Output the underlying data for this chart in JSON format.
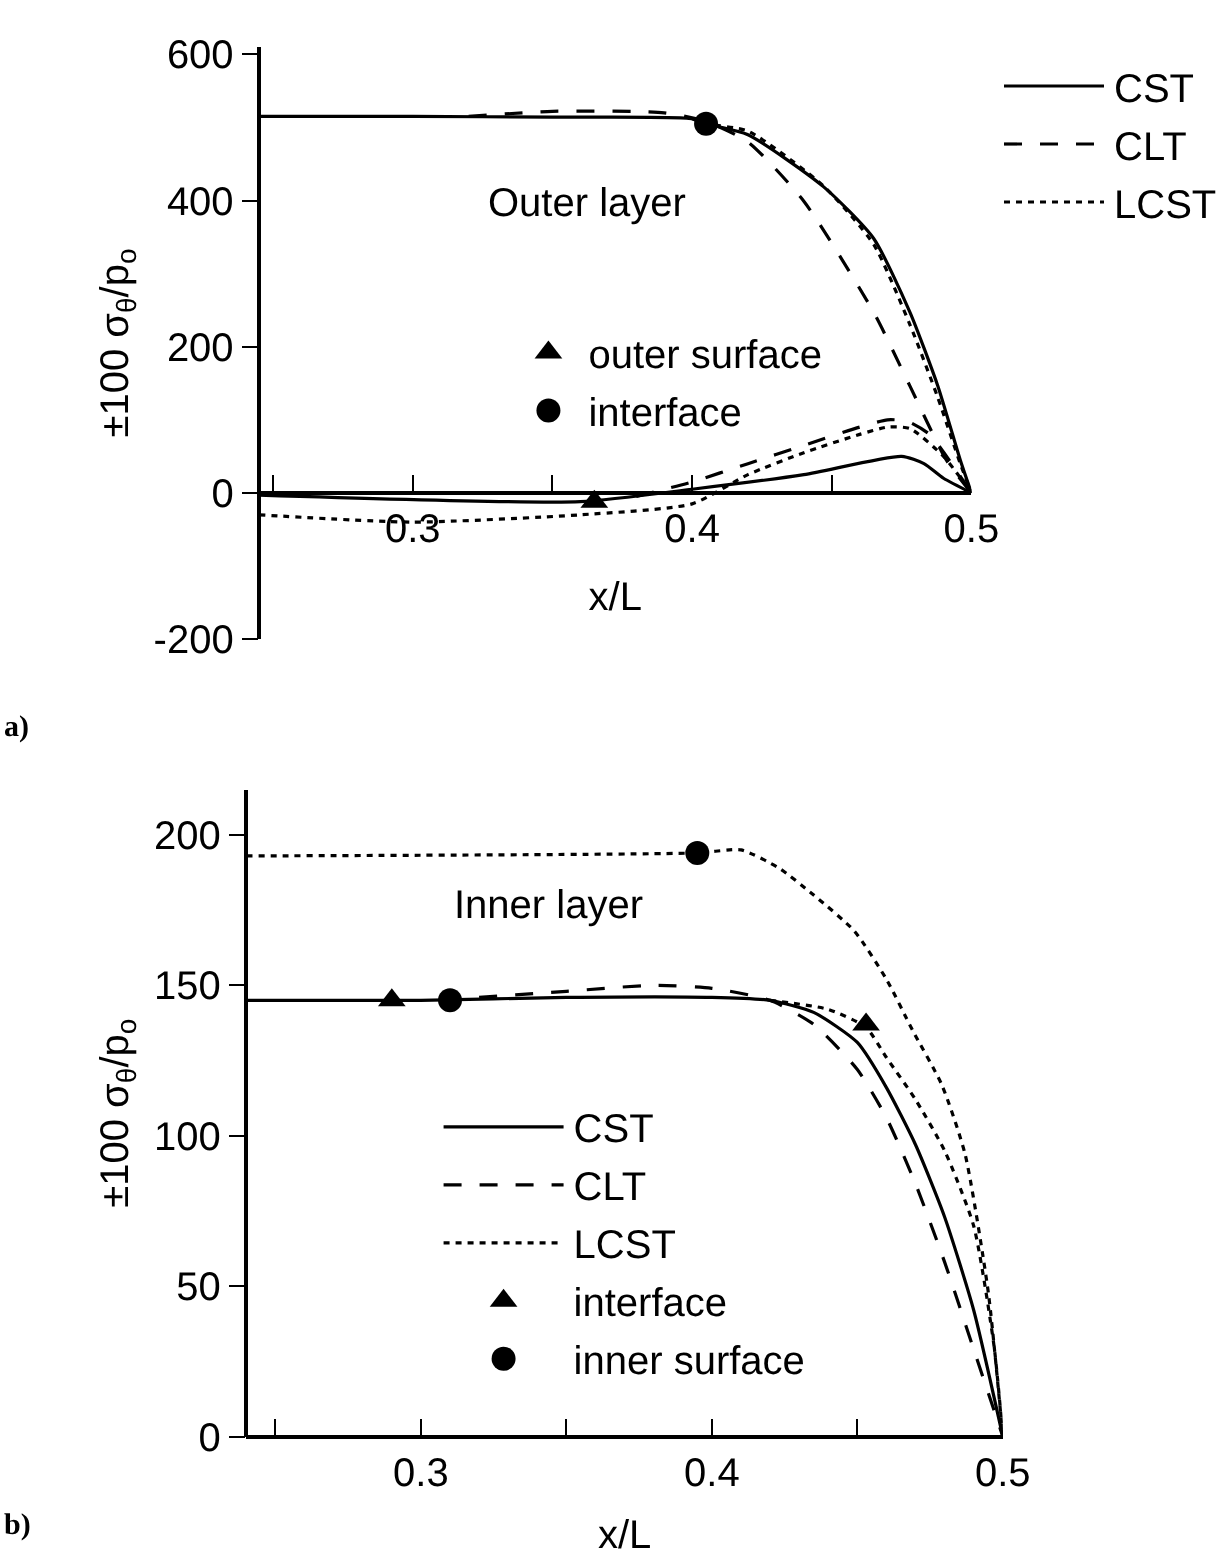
{
  "chart_data": [
    {
      "type": "line",
      "xlabel": "x/L",
      "ylabel": "±100 σ$_{θ}$/p$_{o}$",
      "xlim": [
        0.245,
        0.5
      ],
      "ylim": [
        -200,
        610
      ],
      "xticks": [
        {
          "value": 0.25,
          "label": null
        },
        0.3,
        {
          "value": 0.35,
          "label": null
        },
        0.4,
        {
          "value": 0.45,
          "label": null
        },
        0.5
      ],
      "yticks": [
        -200,
        0,
        200,
        400,
        600
      ],
      "legend": "top right",
      "annotations": [
        "Outer layer",
        "a)"
      ],
      "series": [
        {
          "name": "CST",
          "color": "#000000",
          "line_style": "solid",
          "x": [
            0.245,
            0.3,
            0.35,
            0.4,
            0.405,
            0.42,
            0.447,
            0.465,
            0.478,
            0.488,
            0.496,
            0.5
          ],
          "values": [
            515,
            515,
            514,
            512,
            505,
            490,
            419,
            348,
            247,
            146,
            45,
            0
          ]
        },
        {
          "name": "CLT",
          "color": "#000000",
          "line_style": "dashed",
          "x": [
            0.32,
            0.35,
            0.39,
            0.405,
            0.42,
            0.44,
            0.465,
            0.478,
            0.491,
            0.5
          ],
          "values": [
            515,
            522,
            520,
            508,
            480,
            399,
            247,
            146,
            45,
            0
          ]
        },
        {
          "name": "LCST",
          "color": "#000000",
          "line_style": "dotted",
          "x": [
            0.4,
            0.405,
            0.42,
            0.447,
            0.465,
            0.478,
            0.488,
            0.496,
            0.5
          ],
          "values": [
            512,
            505,
            495,
            420,
            340,
            230,
            130,
            40,
            0
          ]
        },
        {
          "color": "#000000",
          "line_style": "solid",
          "x": [
            0.245,
            0.36,
            0.4,
            0.44,
            0.475,
            0.483,
            0.49,
            0.5
          ],
          "values": [
            -3,
            -12,
            5,
            25,
            50,
            40,
            20,
            0
          ]
        },
        {
          "color": "#000000",
          "line_style": "dashed",
          "x": [
            0.38,
            0.4,
            0.42,
            0.44,
            0.46,
            0.47,
            0.477,
            0.485,
            0.5
          ],
          "values": [
            -5,
            15,
            40,
            65,
            90,
            100,
            98,
            80,
            0
          ]
        },
        {
          "color": "#000000",
          "line_style": "dotted",
          "x": [
            0.245,
            0.3,
            0.36,
            0.4,
            0.42,
            0.44,
            0.46,
            0.47,
            0.478,
            0.49,
            0.5
          ],
          "values": [
            -30,
            -40,
            -30,
            -15,
            25,
            55,
            80,
            90,
            88,
            50,
            0
          ]
        },
        {
          "name": "outer surface",
          "type": "scatter",
          "marker": "triangle",
          "color": "#000000",
          "x": [
            0.365
          ],
          "values": [
            -12
          ]
        },
        {
          "name": "interface",
          "type": "scatter",
          "marker": "circle",
          "color": "#000000",
          "x": [
            0.405
          ],
          "values": [
            505
          ]
        }
      ]
    },
    {
      "type": "line",
      "xlabel": "x/L",
      "ylabel": "±100 σ$_{θ}$/p$_{o}$",
      "xlim": [
        0.24,
        0.5
      ],
      "ylim": [
        0,
        215
      ],
      "xticks": [
        {
          "value": 0.25,
          "label": null
        },
        0.3,
        {
          "value": 0.35,
          "label": null
        },
        0.4,
        {
          "value": 0.45,
          "label": null
        },
        0.5
      ],
      "yticks": [
        0,
        50,
        100,
        150,
        200
      ],
      "legend": "bottom",
      "annotations": [
        "Inner layer",
        "b)"
      ],
      "series": [
        {
          "name": "CST",
          "color": "#000000",
          "line_style": "solid",
          "x": [
            0.24,
            0.3,
            0.35,
            0.4,
            0.42,
            0.435,
            0.45,
            0.46,
            0.47,
            0.48,
            0.49,
            0.5
          ],
          "values": [
            145,
            145,
            146,
            146,
            145,
            141,
            131,
            116,
            97,
            73,
            42,
            0
          ]
        },
        {
          "name": "CLT",
          "color": "#000000",
          "line_style": "dashed",
          "x": [
            0.32,
            0.35,
            0.38,
            0.4,
            0.42,
            0.435,
            0.45,
            0.46,
            0.47,
            0.48,
            0.49,
            0.5
          ],
          "values": [
            146,
            148,
            150,
            149,
            145,
            137,
            122,
            106,
            84,
            58,
            29,
            0
          ]
        },
        {
          "name": "LCST",
          "color": "#000000",
          "line_style": "dotted",
          "x": [
            0.42,
            0.44,
            0.453,
            0.46,
            0.47,
            0.48,
            0.49,
            0.497,
            0.5
          ],
          "values": [
            145,
            142,
            136,
            126,
            112,
            95,
            70,
            30,
            0
          ]
        },
        {
          "color": "#000000",
          "line_style": "dotted",
          "x": [
            0.24,
            0.395,
            0.41,
            0.423,
            0.435,
            0.449,
            0.46,
            0.469,
            0.479,
            0.487,
            0.495,
            0.5
          ],
          "values": [
            193,
            194,
            195,
            189,
            180,
            168,
            152,
            135,
            117,
            94,
            48,
            0
          ]
        },
        {
          "name": "interface",
          "type": "scatter",
          "marker": "triangle",
          "color": "#000000",
          "x": [
            0.29,
            0.453
          ],
          "values": [
            145,
            137
          ]
        },
        {
          "name": "inner surface",
          "type": "scatter",
          "marker": "circle",
          "color": "#000000",
          "x": [
            0.31,
            0.395
          ],
          "values": [
            145,
            194
          ]
        }
      ]
    }
  ]
}
